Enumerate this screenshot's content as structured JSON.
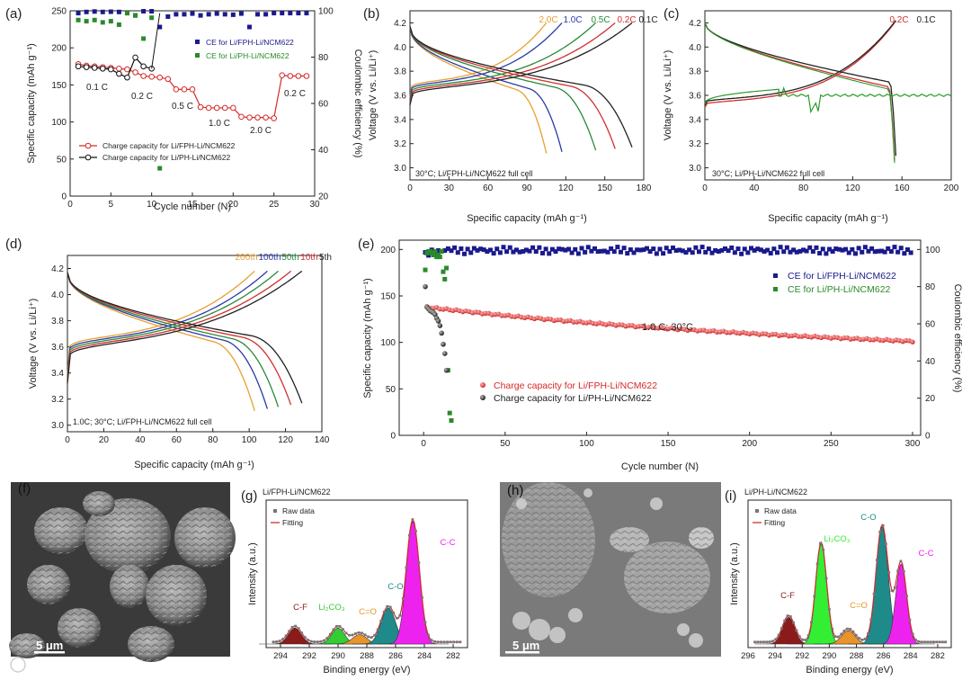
{
  "chart_data": [
    {
      "id": "a",
      "type": "scatter",
      "panel_label": "(a)",
      "xlabel": "Cycle number (N)",
      "ylabel": "Specific capacity (mAh g⁻¹)",
      "y2label": "Coulombic efficiency (%)",
      "xlim": [
        0,
        30
      ],
      "ylim": [
        0,
        250
      ],
      "y2lim": [
        20,
        100
      ],
      "xticks": [
        0,
        5,
        10,
        15,
        20,
        25,
        30
      ],
      "yticks": [
        0,
        50,
        100,
        150,
        200,
        250
      ],
      "y2ticks": [
        20,
        40,
        60,
        80,
        100
      ],
      "series": [
        {
          "name": "Charge capacity for Li/FPH-Li/NCM622",
          "axis": "left",
          "style": "line-open-marker",
          "color": "#d62828",
          "x": [
            1,
            2,
            3,
            4,
            5,
            6,
            7,
            8,
            9,
            10,
            11,
            12,
            13,
            14,
            15,
            16,
            17,
            18,
            19,
            20,
            21,
            22,
            23,
            24,
            25,
            26,
            27,
            28,
            29
          ],
          "y": [
            178,
            176,
            175,
            174,
            173,
            172,
            171,
            167,
            162,
            161,
            160,
            158,
            144,
            144,
            144,
            120,
            119,
            119,
            119,
            119,
            107,
            106,
            106,
            106,
            105,
            163,
            162,
            162,
            162
          ]
        },
        {
          "name": "Charge capacity for Li/PH-Li/NCM622",
          "axis": "left",
          "style": "line-open-marker",
          "color": "#111111",
          "x": [
            1,
            2,
            3,
            4,
            5,
            6,
            7,
            8,
            9,
            10
          ],
          "y": [
            175,
            174,
            173,
            172,
            171,
            165,
            160,
            187,
            175,
            172
          ]
        },
        {
          "name": "CE for Li/FPH-Li/NCM622",
          "axis": "right",
          "style": "square",
          "color": "#1a1a8c",
          "x": [
            1,
            2,
            3,
            4,
            5,
            6,
            7,
            8,
            9,
            10,
            11,
            12,
            13,
            14,
            15,
            16,
            17,
            18,
            19,
            20,
            21,
            22,
            23,
            24,
            25,
            26,
            27,
            28,
            29
          ],
          "y": [
            99,
            99.5,
            99.7,
            99.5,
            99.6,
            99.5,
            99,
            98,
            99.8,
            99.8,
            93,
            97.5,
            98.5,
            98.5,
            98.8,
            98,
            98.5,
            98.8,
            98.5,
            98.3,
            98.8,
            93,
            98.5,
            98.5,
            99,
            99,
            99,
            99,
            99
          ]
        },
        {
          "name": "CE for Li/PH-Li/NCM622",
          "axis": "right",
          "style": "square",
          "color": "#2a8a2a",
          "x": [
            1,
            2,
            3,
            4,
            5,
            6,
            7,
            8,
            9,
            10,
            11
          ],
          "y": [
            96,
            95.5,
            96,
            95,
            95.5,
            94,
            99,
            98,
            88,
            97,
            32
          ]
        }
      ],
      "annotations": [
        "0.1 C",
        "0.2 C",
        "0.5 C",
        "1.0 C",
        "2.0 C",
        "0.2 C"
      ]
    },
    {
      "id": "b",
      "type": "line",
      "panel_label": "(b)",
      "xlabel": "Specific capacity (mAh g⁻¹)",
      "ylabel": "Voltage (V vs. Li/Li⁺)",
      "xlim": [
        0,
        180
      ],
      "ylim": [
        2.9,
        4.3
      ],
      "xticks": [
        0,
        30,
        60,
        90,
        120,
        150,
        180
      ],
      "yticks": [
        3.0,
        3.2,
        3.4,
        3.6,
        3.8,
        4.0,
        4.2
      ],
      "series": [
        {
          "name": "2.0C",
          "color": "#e8a030",
          "capacity": 105
        },
        {
          "name": "1.0C",
          "color": "#2a3ba8",
          "capacity": 117
        },
        {
          "name": "0.5C",
          "color": "#2a8a3a",
          "capacity": 143
        },
        {
          "name": "0.2C",
          "color": "#d03030",
          "capacity": 158
        },
        {
          "name": "0.1C",
          "color": "#222222",
          "capacity": 171
        }
      ],
      "note": "30°C; Li/FPH-Li/NCM622 full cell"
    },
    {
      "id": "c",
      "type": "line",
      "panel_label": "(c)",
      "xlabel": "Specific capacity (mAh g⁻¹)",
      "ylabel": "Voltage (V vs. Li/Li⁺)",
      "xlim": [
        0,
        200
      ],
      "ylim": [
        2.9,
        4.3
      ],
      "xticks": [
        0,
        40,
        80,
        120,
        160,
        200
      ],
      "yticks": [
        3.0,
        3.2,
        3.4,
        3.6,
        3.8,
        4.0,
        4.2
      ],
      "series": [
        {
          "name": "0.2C",
          "color": "#d03030",
          "capacity": 154
        },
        {
          "name": "0.1C",
          "color": "#222222",
          "capacity": 155
        },
        {
          "name": "green",
          "color": "#2a9a2a",
          "capacity": 154
        }
      ],
      "note": "30°C; Li/PH-Li/NCM622 full cell"
    },
    {
      "id": "d",
      "type": "line",
      "panel_label": "(d)",
      "xlabel": "Specific capacity (mAh g⁻¹)",
      "ylabel": "Voltage (V vs. Li/Li⁺)",
      "xlim": [
        0,
        140
      ],
      "ylim": [
        2.95,
        4.3
      ],
      "xticks": [
        0,
        20,
        40,
        60,
        80,
        100,
        120,
        140
      ],
      "yticks": [
        3.0,
        3.2,
        3.4,
        3.6,
        3.8,
        4.0,
        4.2
      ],
      "series": [
        {
          "name": "200th",
          "color": "#e8a030",
          "capacity": 103
        },
        {
          "name": "100th",
          "color": "#2a3ba8",
          "capacity": 110
        },
        {
          "name": "50th",
          "color": "#2a8a3a",
          "capacity": 116
        },
        {
          "name": "10th",
          "color": "#d03030",
          "capacity": 123
        },
        {
          "name": "5th",
          "color": "#222222",
          "capacity": 129
        }
      ],
      "note": "1.0C; 30°C; Li/FPH-Li/NCM622 full cell"
    },
    {
      "id": "e",
      "type": "scatter",
      "panel_label": "(e)",
      "xlabel": "Cycle number (N)",
      "ylabel": "Specific capacity (mAh g⁻¹)",
      "y2label": "Coulombic efficiency (%)",
      "xlim": [
        -15,
        305
      ],
      "ylim": [
        0,
        210
      ],
      "y2lim": [
        0,
        105
      ],
      "xticks": [
        0,
        50,
        100,
        150,
        200,
        250,
        300
      ],
      "yticks": [
        0,
        50,
        100,
        150,
        200
      ],
      "y2ticks": [
        0,
        20,
        40,
        60,
        80,
        100
      ],
      "series": [
        {
          "name": "CE for Li/FPH-Li/NCM622",
          "axis": "right",
          "color": "#1a1a8c",
          "from": 1,
          "to": 300,
          "start": 96,
          "level": 99.5
        },
        {
          "name": "CE for Li/PH-Li/NCM622",
          "axis": "right",
          "color": "#2a8a2a",
          "x": [
            1,
            2,
            3,
            4,
            5,
            6,
            7,
            8,
            9,
            10,
            11,
            12,
            13,
            14,
            15,
            16,
            17
          ],
          "y": [
            89,
            98,
            99,
            99,
            98,
            97,
            99,
            96,
            97,
            96,
            99,
            88,
            84,
            90,
            35,
            12,
            8
          ]
        },
        {
          "name": "Charge capacity for Li/FPH-Li/NCM622",
          "axis": "left",
          "color": "#d62828",
          "from": 2,
          "to": 300,
          "start": 138,
          "end": 95
        },
        {
          "name": "Charge capacity for Li/PH-Li/NCM622",
          "axis": "left",
          "color": "#111111",
          "x": [
            1,
            2,
            3,
            4,
            5,
            6,
            7,
            8,
            9,
            10,
            11,
            12,
            13,
            14
          ],
          "y": [
            160,
            138,
            136,
            134,
            133,
            132,
            130,
            126,
            123,
            118,
            110,
            98,
            88,
            70
          ]
        }
      ],
      "annotation": "1.0 C; 30°C"
    },
    {
      "id": "g",
      "type": "area",
      "panel_label": "(g)",
      "title": "Li/FPH-Li/NCM622",
      "xlabel": "Binding energy (eV)",
      "ylabel": "Intensity (a.u.)",
      "xlim": [
        295,
        281
      ],
      "xticks": [
        294,
        292,
        290,
        288,
        286,
        284,
        282
      ],
      "peaks": [
        {
          "label": "C-F",
          "center": 293.0,
          "height": 0.12,
          "width": 0.45,
          "color": "#8b1a1a"
        },
        {
          "label": "Li₂CO₃",
          "center": 290.0,
          "height": 0.12,
          "width": 0.45,
          "color": "#33cc33"
        },
        {
          "label": "C=O",
          "center": 288.5,
          "height": 0.07,
          "width": 0.5,
          "color": "#e8942a"
        },
        {
          "label": "C-O",
          "center": 286.5,
          "height": 0.27,
          "width": 0.5,
          "color": "#1e8a8a"
        },
        {
          "label": "C-C",
          "center": 284.8,
          "height": 0.92,
          "width": 0.45,
          "color": "#ee22ee"
        }
      ],
      "legend": [
        "Raw data",
        "Fitting"
      ]
    },
    {
      "id": "i",
      "type": "area",
      "panel_label": "(i)",
      "title": "Li/PH-Li/NCM622",
      "xlabel": "Binding energy (eV)",
      "ylabel": "Intensity (a.u.)",
      "xlim": [
        296,
        281
      ],
      "xticks": [
        296,
        294,
        292,
        290,
        288,
        286,
        284,
        282
      ],
      "peaks": [
        {
          "label": "C-F",
          "center": 293.0,
          "height": 0.2,
          "width": 0.45,
          "color": "#8b1a1a"
        },
        {
          "label": "Li₂CO₃",
          "center": 290.6,
          "height": 0.75,
          "width": 0.4,
          "color": "#33ee33"
        },
        {
          "label": "C=O",
          "center": 288.6,
          "height": 0.1,
          "width": 0.5,
          "color": "#e8942a"
        },
        {
          "label": "C-O",
          "center": 286.1,
          "height": 0.88,
          "width": 0.45,
          "color": "#1e8a8a"
        },
        {
          "label": "C-C",
          "center": 284.7,
          "height": 0.6,
          "width": 0.4,
          "color": "#ee22ee"
        }
      ],
      "legend": [
        "Raw data",
        "Fitting"
      ]
    }
  ],
  "images": {
    "f": {
      "panel_label": "(f)",
      "scale_bar": "5 μm"
    },
    "h": {
      "panel_label": "(h)",
      "scale_bar": "5 μm"
    }
  }
}
